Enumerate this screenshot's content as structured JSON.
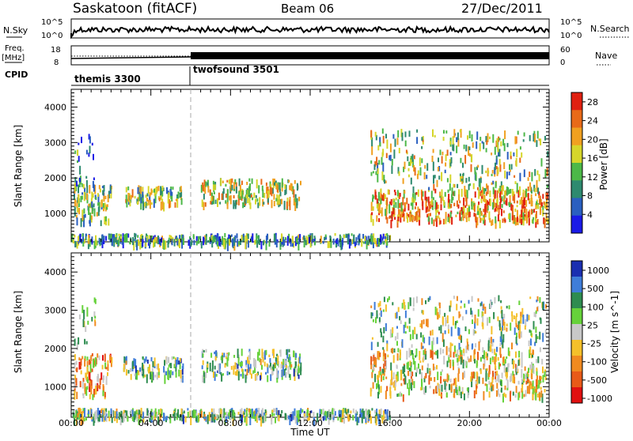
{
  "header": {
    "title": "Saskatoon (fitACF)",
    "beam": "Beam 06",
    "date": "27/Dec/2011"
  },
  "top_labels": {
    "n_sky": "N.Sky",
    "n_search": "N.Search",
    "freq": "Freq.",
    "freq_unit": "[MHz]",
    "nave": "Nave",
    "cpid": "CPID"
  },
  "top_ticks": {
    "noise_left": [
      "10^5",
      "10^0"
    ],
    "noise_right": [
      "10^5",
      "10^0"
    ],
    "freq_left": [
      "18",
      "8"
    ],
    "nave_right": [
      "60",
      "0"
    ]
  },
  "cpid_segments": [
    {
      "label": "themis 3300",
      "start_hour": 0,
      "end_hour": 6
    },
    {
      "label": "twofsound 3501",
      "start_hour": 6,
      "end_hour": 24
    }
  ],
  "colors": {
    "power_scale": [
      "#1a1ae6",
      "#2a5fc0",
      "#2e8a6f",
      "#4cb848",
      "#d6d62a",
      "#f0a020",
      "#e86a18",
      "#e02010"
    ],
    "velocity_scale": [
      "#1a2eb0",
      "#3f7dd8",
      "#2e8c50",
      "#66d23a",
      "#c8c8c8",
      "#f4c02a",
      "#f08a20",
      "#e85a18",
      "#e01010"
    ]
  },
  "chart_data": [
    {
      "type": "heatmap",
      "name_role": "power panel",
      "ylabel": "Slant Range [km]",
      "xlabel": "Time UT",
      "x_ticks": [
        "00:00",
        "04:00",
        "08:00",
        "12:00",
        "16:00",
        "20:00",
        "00:00"
      ],
      "xlim_hours": [
        0,
        24
      ],
      "ylim_km": [
        200,
        4500
      ],
      "y_ticks": [
        "1000",
        "2000",
        "3000",
        "4000"
      ],
      "colorbar_label": "Power [dB]",
      "colorbar_ticks": [
        "4",
        "8",
        "12",
        "16",
        "20",
        "24",
        "28"
      ],
      "colorbar_range": [
        0,
        30
      ],
      "scatter_regions": [
        {
          "t0": 0.1,
          "t1": 2.0,
          "r0": 800,
          "r1": 1900,
          "level": 0.45,
          "density": 0.9
        },
        {
          "t0": 0.1,
          "t1": 1.2,
          "r0": 1900,
          "r1": 3400,
          "level": 0.25,
          "density": 0.35
        },
        {
          "t0": 2.6,
          "t1": 5.6,
          "r0": 1300,
          "r1": 1800,
          "level": 0.5,
          "density": 0.55
        },
        {
          "t0": 6.5,
          "t1": 11.5,
          "r0": 1300,
          "r1": 2000,
          "level": 0.55,
          "density": 0.65
        },
        {
          "t0": 15.0,
          "t1": 23.9,
          "r0": 800,
          "r1": 1700,
          "level": 0.7,
          "density": 0.9
        },
        {
          "t0": 15.0,
          "t1": 23.9,
          "r0": 1700,
          "r1": 3400,
          "level": 0.5,
          "density": 0.55
        },
        {
          "t0": 0.0,
          "t1": 16.0,
          "r0": 200,
          "r1": 450,
          "level": 0.35,
          "density": 0.5
        }
      ]
    },
    {
      "type": "heatmap",
      "name_role": "velocity panel",
      "ylabel": "Slant Range [km]",
      "xlabel": "Time UT",
      "x_ticks": [
        "00:00",
        "04:00",
        "08:00",
        "12:00",
        "16:00",
        "20:00",
        "00:00"
      ],
      "xlim_hours": [
        0,
        24
      ],
      "ylim_km": [
        200,
        4500
      ],
      "y_ticks": [
        "1000",
        "2000",
        "3000",
        "4000"
      ],
      "colorbar_label": "Velocity [m s^-1]",
      "colorbar_ticks": [
        "1000",
        "500",
        "100",
        "25",
        "-25",
        "-100",
        "-500",
        "-1000"
      ],
      "scatter_regions": [
        {
          "t0": 0.1,
          "t1": 2.0,
          "r0": 800,
          "r1": 1900,
          "level": 0.35,
          "density": 0.85
        },
        {
          "t0": 0.1,
          "t1": 1.2,
          "r0": 1900,
          "r1": 3400,
          "level": 0.55,
          "density": 0.3
        },
        {
          "t0": 2.6,
          "t1": 5.6,
          "r0": 1300,
          "r1": 1800,
          "level": 0.62,
          "density": 0.55
        },
        {
          "t0": 6.5,
          "t1": 11.5,
          "r0": 1300,
          "r1": 2000,
          "level": 0.62,
          "density": 0.65
        },
        {
          "t0": 15.0,
          "t1": 23.9,
          "r0": 800,
          "r1": 2000,
          "level": 0.45,
          "density": 0.9
        },
        {
          "t0": 15.0,
          "t1": 23.9,
          "r0": 2000,
          "r1": 3400,
          "level": 0.58,
          "density": 0.55
        },
        {
          "t0": 0.0,
          "t1": 16.0,
          "r0": 200,
          "r1": 450,
          "level": 0.6,
          "density": 0.5
        }
      ]
    }
  ]
}
